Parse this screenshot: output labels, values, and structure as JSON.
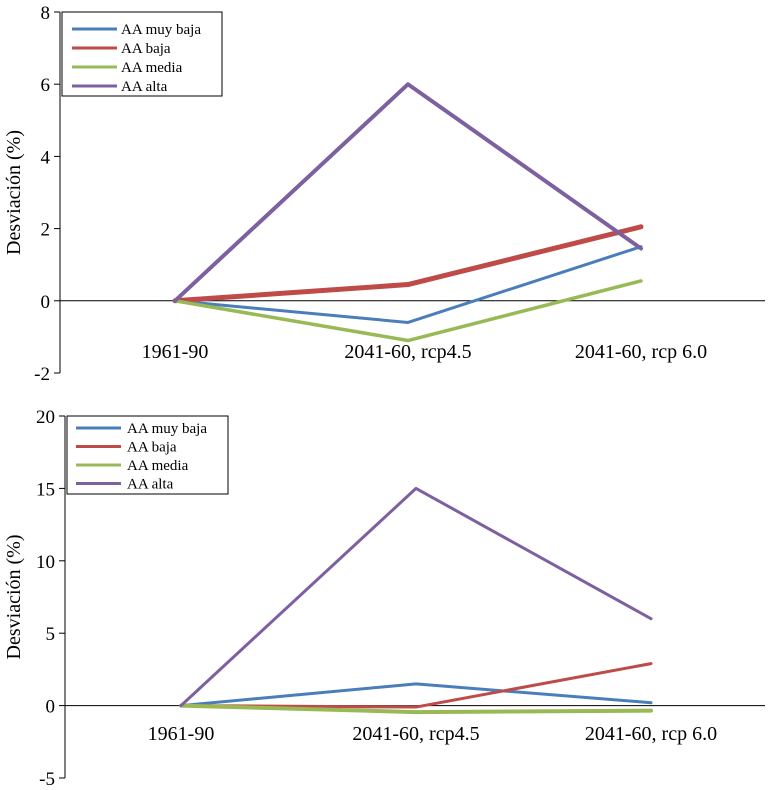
{
  "chart_data": [
    {
      "type": "line",
      "categories": [
        "1961-90",
        "2041-60, rcp4.5",
        "2041-60, rcp 6.0"
      ],
      "ylabel": "Desviación (%)",
      "ylim": [
        -2,
        8
      ],
      "yticks": [
        -2,
        0,
        2,
        4,
        6,
        8
      ],
      "legend_position": "top-left",
      "series": [
        {
          "name": "AA muy baja",
          "color": "#4a7ebb",
          "values": [
            0,
            -0.6,
            1.5
          ]
        },
        {
          "name": "AA baja",
          "color": "#be4b48",
          "values": [
            0,
            0.45,
            2.05
          ]
        },
        {
          "name": "AA media",
          "color": "#98b954",
          "values": [
            0,
            -1.1,
            0.55
          ]
        },
        {
          "name": "AA alta",
          "color": "#7d60a0",
          "values": [
            0,
            6.0,
            1.45
          ]
        }
      ]
    },
    {
      "type": "line",
      "categories": [
        "1961-90",
        "2041-60, rcp4.5",
        "2041-60, rcp 6.0"
      ],
      "ylabel": "Desviación (%)",
      "ylim": [
        -5,
        20
      ],
      "yticks": [
        -5,
        0,
        5,
        10,
        15,
        20
      ],
      "legend_position": "top-left",
      "series": [
        {
          "name": "AA muy baja",
          "color": "#4a7ebb",
          "values": [
            0,
            1.5,
            0.2
          ]
        },
        {
          "name": "AA baja",
          "color": "#be4b48",
          "values": [
            0,
            -0.1,
            2.9
          ]
        },
        {
          "name": "AA media",
          "color": "#98b954",
          "values": [
            0,
            -0.45,
            -0.35
          ]
        },
        {
          "name": "AA alta",
          "color": "#7d60a0",
          "values": [
            0,
            15.0,
            6.0
          ]
        }
      ]
    }
  ]
}
